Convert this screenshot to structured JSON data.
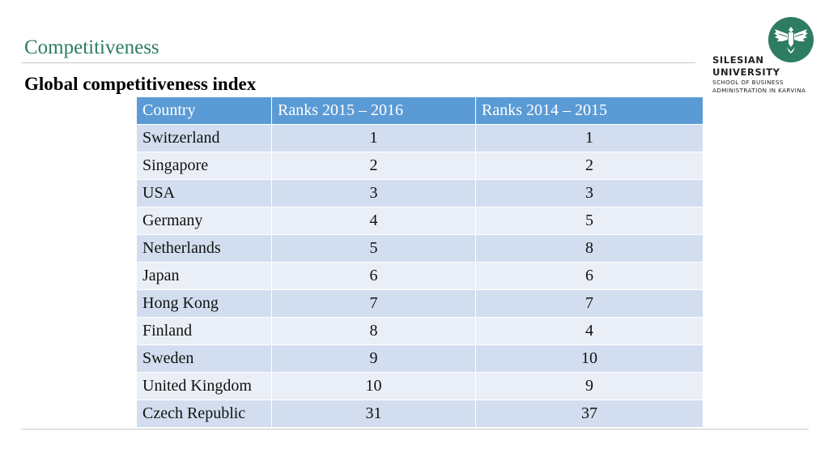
{
  "slide": {
    "title": "Competitiveness",
    "subtitle": "Global competitiveness index"
  },
  "logo": {
    "line1": "SILESIAN",
    "line2": "UNIVERSITY",
    "line3": "SCHOOL OF BUSINESS",
    "line4": "ADMINISTRATION IN KARVINA",
    "color": "#2e7d60",
    "icon": "eagle-emblem-icon"
  },
  "table": {
    "headers": [
      "Country",
      "Ranks 2015 – 2016",
      "Ranks 2014 – 2015"
    ],
    "rows": [
      [
        "Switzerland",
        "1",
        "1"
      ],
      [
        "Singapore",
        "2",
        "2"
      ],
      [
        "USA",
        "3",
        "3"
      ],
      [
        "Germany",
        "4",
        "5"
      ],
      [
        "Netherlands",
        "5",
        "8"
      ],
      [
        "Japan",
        "6",
        "6"
      ],
      [
        "Hong Kong",
        "7",
        "7"
      ],
      [
        "Finland",
        "8",
        "4"
      ],
      [
        "Sweden",
        "9",
        "10"
      ],
      [
        "United Kingdom",
        "10",
        "9"
      ],
      [
        "Czech Republic",
        "31",
        "37"
      ]
    ]
  },
  "colors": {
    "title": "#2e7d60",
    "header": "#5b9bd5",
    "row_dark": "#d2deef",
    "row_light": "#eaeff7"
  }
}
